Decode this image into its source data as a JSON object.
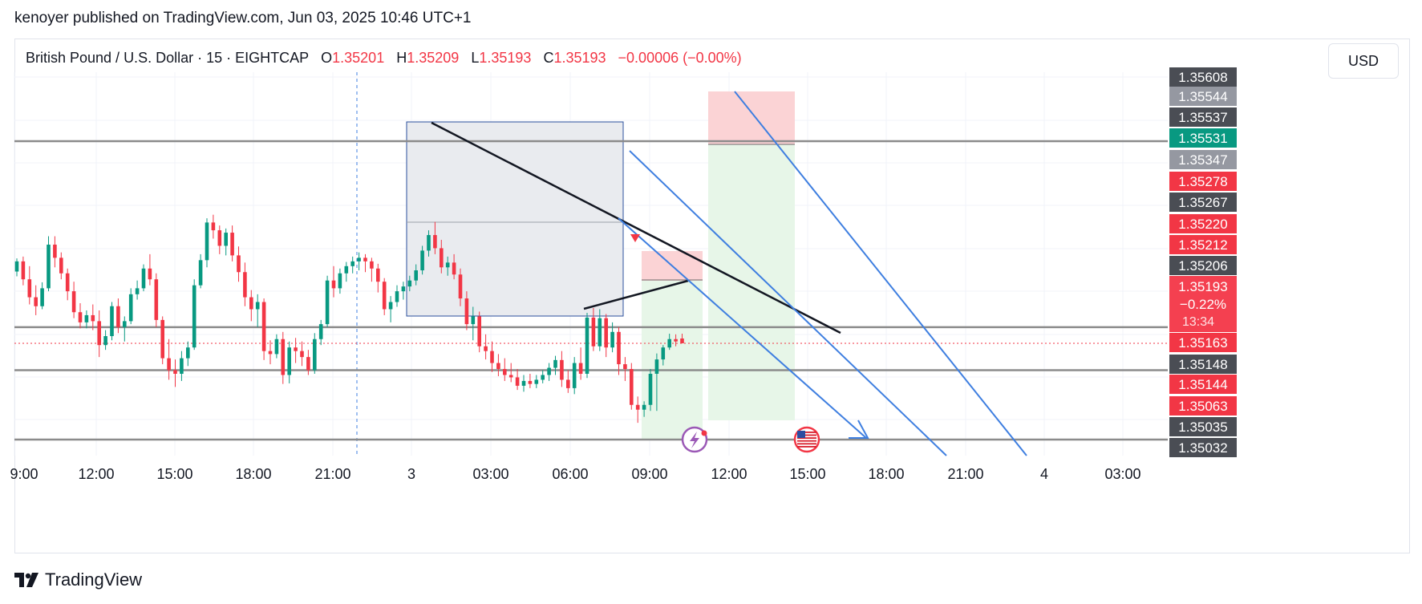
{
  "header": {
    "publisher_line": "kenoyer published on TradingView.com, Jun 03, 2025 10:46 UTC+1"
  },
  "legend": {
    "symbol": "British Pound / U.S. Dollar · 15 · EIGHTCAP",
    "o_label": "O",
    "o_value": "1.35201",
    "h_label": "H",
    "h_value": "1.35209",
    "l_label": "L",
    "l_value": "1.35193",
    "c_label": "C",
    "c_value": "1.35193",
    "change": "−0.00006 (−0.00%)"
  },
  "currency_button": "USD",
  "footer": {
    "brand": "TradingView"
  },
  "colors": {
    "up": "#089981",
    "down": "#f23645",
    "trend_blue": "#3f7fe0",
    "level_gray": "#8b8b8b",
    "box_fill": "#e9ebef",
    "box_border": "#2a4f9c",
    "zone_red": "#fbd3d5",
    "zone_green": "#e7f6e8"
  },
  "icons": [
    "lightning-event-icon",
    "us-flag-event-icon",
    "tradingview-logo-icon",
    "signal-arrow-icon"
  ],
  "chart_data": {
    "type": "candlestick",
    "instrument": "British Pound / U.S. Dollar",
    "timeframe": "15",
    "broker": "EIGHTCAP",
    "x_ticks": [
      "9:00",
      "12:00",
      "15:00",
      "18:00",
      "21:00",
      "3",
      "03:00",
      "06:00",
      "09:00",
      "12:00",
      "15:00",
      "18:00",
      "21:00",
      "4",
      "03:00"
    ],
    "y_range": [
      1.3503,
      1.3561
    ],
    "price_axis_labels": [
      {
        "value": "1.35608",
        "style": "gray"
      },
      {
        "value": "1.35544",
        "style": "lightgray"
      },
      {
        "value": "1.35537",
        "style": "gray"
      },
      {
        "value": "1.35531",
        "style": "green"
      },
      {
        "value": "1.35347",
        "style": "lightgray"
      },
      {
        "value": "1.35278",
        "style": "red"
      },
      {
        "value": "1.35267",
        "style": "gray"
      },
      {
        "value": "1.35220",
        "style": "red"
      },
      {
        "value": "1.35212",
        "style": "red"
      },
      {
        "value": "1.35206",
        "style": "gray"
      },
      {
        "value": "1.35163",
        "style": "red"
      },
      {
        "value": "1.35148",
        "style": "gray"
      },
      {
        "value": "1.35144",
        "style": "red"
      },
      {
        "value": "1.35063",
        "style": "red"
      },
      {
        "value": "1.35035",
        "style": "gray"
      },
      {
        "value": "1.35032",
        "style": "gray"
      }
    ],
    "current_price": {
      "value": "1.35193",
      "change_pct": "−0.22%",
      "countdown": "13:34"
    },
    "horizontal_levels": [
      1.35531,
      1.3522,
      1.35148,
      1.35032
    ],
    "candles": [
      [
        1.35313,
        1.35335,
        1.35305,
        1.3533
      ],
      [
        1.3533,
        1.35338,
        1.3529,
        1.353
      ],
      [
        1.353,
        1.35322,
        1.35258,
        1.3527
      ],
      [
        1.3527,
        1.3529,
        1.3524,
        1.35255
      ],
      [
        1.35255,
        1.35295,
        1.3525,
        1.35285
      ],
      [
        1.35285,
        1.35372,
        1.3528,
        1.35358
      ],
      [
        1.35358,
        1.35372,
        1.3532,
        1.35336
      ],
      [
        1.35336,
        1.35345,
        1.353,
        1.3531
      ],
      [
        1.3531,
        1.35318,
        1.35265,
        1.3528
      ],
      [
        1.3528,
        1.35296,
        1.35235,
        1.35245
      ],
      [
        1.35245,
        1.3526,
        1.35218,
        1.35228
      ],
      [
        1.35228,
        1.35248,
        1.35218,
        1.3524
      ],
      [
        1.3524,
        1.35258,
        1.35215,
        1.3523
      ],
      [
        1.3523,
        1.35248,
        1.3517,
        1.3519
      ],
      [
        1.3519,
        1.35215,
        1.35182,
        1.35205
      ],
      [
        1.35205,
        1.35262,
        1.35198,
        1.35255
      ],
      [
        1.35255,
        1.35268,
        1.3521,
        1.3522
      ],
      [
        1.3522,
        1.35238,
        1.35196,
        1.3523
      ],
      [
        1.3523,
        1.35285,
        1.35225,
        1.35275
      ],
      [
        1.35275,
        1.35298,
        1.35266,
        1.35285
      ],
      [
        1.35285,
        1.35325,
        1.3528,
        1.35318
      ],
      [
        1.35318,
        1.35342,
        1.3529,
        1.353
      ],
      [
        1.353,
        1.3531,
        1.3522,
        1.35232
      ],
      [
        1.35232,
        1.35238,
        1.35158,
        1.35168
      ],
      [
        1.35168,
        1.352,
        1.35132,
        1.35148
      ],
      [
        1.35148,
        1.35166,
        1.3512,
        1.35142
      ],
      [
        1.35142,
        1.3518,
        1.3513,
        1.35168
      ],
      [
        1.35168,
        1.35196,
        1.35155,
        1.35186
      ],
      [
        1.35186,
        1.353,
        1.35182,
        1.3529
      ],
      [
        1.3529,
        1.35342,
        1.35285,
        1.35332
      ],
      [
        1.35332,
        1.35402,
        1.3532,
        1.35395
      ],
      [
        1.35395,
        1.35408,
        1.35368,
        1.35382
      ],
      [
        1.35382,
        1.3539,
        1.35342,
        1.35356
      ],
      [
        1.35356,
        1.35385,
        1.3534,
        1.35378
      ],
      [
        1.35378,
        1.3539,
        1.3533,
        1.3534
      ],
      [
        1.3534,
        1.35355,
        1.35296,
        1.35312
      ],
      [
        1.35312,
        1.35328,
        1.35255,
        1.3527
      ],
      [
        1.3527,
        1.35282,
        1.3523,
        1.3525
      ],
      [
        1.3525,
        1.35275,
        1.3522,
        1.35262
      ],
      [
        1.35262,
        1.35268,
        1.35165,
        1.3518
      ],
      [
        1.3518,
        1.35198,
        1.35158,
        1.35175
      ],
      [
        1.35175,
        1.35208,
        1.35168,
        1.352
      ],
      [
        1.352,
        1.35212,
        1.35125,
        1.3514
      ],
      [
        1.3514,
        1.35196,
        1.35126,
        1.35186
      ],
      [
        1.35186,
        1.35202,
        1.3516,
        1.3518
      ],
      [
        1.3518,
        1.35196,
        1.35155,
        1.3517
      ],
      [
        1.3517,
        1.35182,
        1.3514,
        1.35148
      ],
      [
        1.35148,
        1.3521,
        1.35142,
        1.352
      ],
      [
        1.352,
        1.35232,
        1.3519,
        1.35225
      ],
      [
        1.35225,
        1.35306,
        1.3522,
        1.35298
      ],
      [
        1.35298,
        1.35322,
        1.3527,
        1.35285
      ],
      [
        1.35285,
        1.35318,
        1.35276,
        1.3531
      ],
      [
        1.3531,
        1.35329,
        1.35296,
        1.35322
      ],
      [
        1.35322,
        1.35338,
        1.3531,
        1.3533
      ],
      [
        1.3533,
        1.35345,
        1.35315,
        1.35336
      ],
      [
        1.35336,
        1.35342,
        1.35312,
        1.3533
      ],
      [
        1.3533,
        1.35336,
        1.35296,
        1.35318
      ],
      [
        1.35318,
        1.35326,
        1.35278,
        1.35296
      ],
      [
        1.35296,
        1.35302,
        1.3524,
        1.3525
      ],
      [
        1.3525,
        1.35272,
        1.35228,
        1.35262
      ],
      [
        1.35262,
        1.3529,
        1.35254,
        1.3528
      ],
      [
        1.3528,
        1.35296,
        1.35266,
        1.35288
      ],
      [
        1.35288,
        1.35306,
        1.3528,
        1.35298
      ],
      [
        1.35298,
        1.35325,
        1.3529,
        1.35315
      ],
      [
        1.35315,
        1.35356,
        1.35308,
        1.35348
      ],
      [
        1.35348,
        1.35382,
        1.35338,
        1.35374
      ],
      [
        1.35374,
        1.35396,
        1.35342,
        1.35352
      ],
      [
        1.35352,
        1.35366,
        1.3531,
        1.3532
      ],
      [
        1.3532,
        1.35338,
        1.35306,
        1.35328
      ],
      [
        1.35328,
        1.35342,
        1.353,
        1.35308
      ],
      [
        1.35308,
        1.35318,
        1.35255,
        1.35268
      ],
      [
        1.35268,
        1.3528,
        1.35215,
        1.35225
      ],
      [
        1.35225,
        1.35254,
        1.35198,
        1.35238
      ],
      [
        1.35238,
        1.35246,
        1.35178,
        1.35188
      ],
      [
        1.35188,
        1.35208,
        1.35166,
        1.3518
      ],
      [
        1.3518,
        1.35196,
        1.35145,
        1.3516
      ],
      [
        1.3516,
        1.35175,
        1.35138,
        1.3515
      ],
      [
        1.3515,
        1.35168,
        1.3513,
        1.3514
      ],
      [
        1.3514,
        1.3516,
        1.35128,
        1.35136
      ],
      [
        1.35136,
        1.3515,
        1.35115,
        1.35122
      ],
      [
        1.35122,
        1.3514,
        1.35112,
        1.3513
      ],
      [
        1.3513,
        1.35142,
        1.35118,
        1.35125
      ],
      [
        1.35125,
        1.3514,
        1.35118,
        1.35132
      ],
      [
        1.35132,
        1.35148,
        1.35126,
        1.3514
      ],
      [
        1.3514,
        1.3516,
        1.3513,
        1.35152
      ],
      [
        1.35152,
        1.35172,
        1.3514,
        1.35165
      ],
      [
        1.35165,
        1.3518,
        1.3512,
        1.35132
      ],
      [
        1.35132,
        1.35148,
        1.3511,
        1.35118
      ],
      [
        1.35118,
        1.3517,
        1.35108,
        1.3516
      ],
      [
        1.3516,
        1.35186,
        1.35132,
        1.35142
      ],
      [
        1.35142,
        1.35244,
        1.35135,
        1.35236
      ],
      [
        1.35236,
        1.35252,
        1.3518,
        1.35188
      ],
      [
        1.35188,
        1.3525,
        1.3518,
        1.35235
      ],
      [
        1.35235,
        1.35242,
        1.3517,
        1.35186
      ],
      [
        1.35186,
        1.35228,
        1.35178,
        1.35212
      ],
      [
        1.35212,
        1.3522,
        1.3514,
        1.35158
      ],
      [
        1.35158,
        1.3517,
        1.3513,
        1.3515
      ],
      [
        1.3515,
        1.3516,
        1.35082,
        1.3509
      ],
      [
        1.3509,
        1.35104,
        1.3506,
        1.35082
      ],
      [
        1.35082,
        1.35096,
        1.3507,
        1.3509
      ],
      [
        1.3509,
        1.3515,
        1.3508,
        1.35142
      ],
      [
        1.35142,
        1.35176,
        1.3508,
        1.35166
      ],
      [
        1.35166,
        1.3519,
        1.35156,
        1.35186
      ],
      [
        1.35186,
        1.35209,
        1.35182,
        1.352
      ],
      [
        1.352,
        1.35208,
        1.35188,
        1.35196
      ],
      [
        1.35201,
        1.35209,
        1.35193,
        1.35193
      ]
    ]
  }
}
